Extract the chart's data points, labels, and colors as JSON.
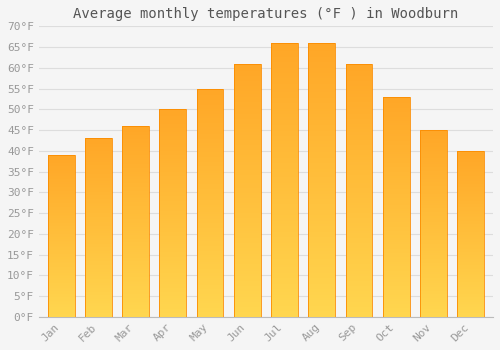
{
  "title": "Average monthly temperatures (°F ) in Woodburn",
  "months": [
    "Jan",
    "Feb",
    "Mar",
    "Apr",
    "May",
    "Jun",
    "Jul",
    "Aug",
    "Sep",
    "Oct",
    "Nov",
    "Dec"
  ],
  "values": [
    39,
    43,
    46,
    50,
    55,
    61,
    66,
    66,
    61,
    53,
    45,
    40
  ],
  "bar_color_top": "#FFA726",
  "bar_color_bottom": "#FFD54F",
  "bar_edge_color": "#FB8C00",
  "background_color": "#F5F5F5",
  "grid_color": "#DDDDDD",
  "ylim": [
    0,
    70
  ],
  "ytick_step": 5,
  "title_fontsize": 10,
  "tick_fontsize": 8,
  "tick_label_color": "#999999",
  "title_color": "#555555",
  "bar_width": 0.72
}
